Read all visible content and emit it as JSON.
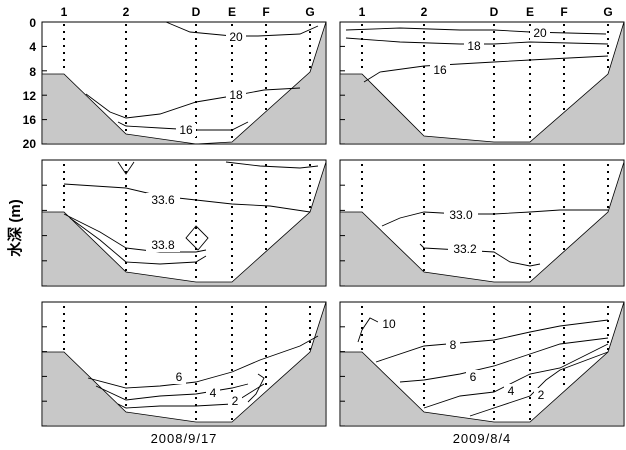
{
  "y_axis_label": "水深 (m)",
  "depth_ticks": [
    "0",
    "4",
    "8",
    "12",
    "16",
    "20"
  ],
  "stations": [
    "1",
    "2",
    "D",
    "E",
    "F",
    "G"
  ],
  "colors": {
    "bottom_fill": "#c8c8c8",
    "line": "#000000"
  },
  "chart_data": [
    {
      "type": "contour",
      "variable_row": 1,
      "date": "2008/9/17",
      "y_range_m": [
        0,
        20
      ],
      "y_inverted": true,
      "xlabel": "",
      "ylabel": "水深 (m)",
      "contour_levels": [
        "20",
        "18",
        "16"
      ]
    },
    {
      "type": "contour",
      "variable_row": 1,
      "date": "2009/8/4",
      "y_range_m": [
        0,
        20
      ],
      "y_inverted": true,
      "xlabel": "",
      "ylabel": "",
      "contour_levels": [
        "20",
        "18",
        "16"
      ]
    },
    {
      "type": "contour",
      "variable_row": 2,
      "date": "2008/9/17",
      "y_range_m": [
        0,
        20
      ],
      "y_inverted": true,
      "xlabel": "",
      "ylabel": "水深 (m)",
      "contour_levels": [
        "33.6",
        "33.8"
      ]
    },
    {
      "type": "contour",
      "variable_row": 2,
      "date": "2009/8/4",
      "y_range_m": [
        0,
        20
      ],
      "y_inverted": true,
      "xlabel": "",
      "ylabel": "",
      "contour_levels": [
        "33.0",
        "33.2"
      ]
    },
    {
      "type": "contour",
      "variable_row": 3,
      "date": "2008/9/17",
      "y_range_m": [
        0,
        20
      ],
      "y_inverted": true,
      "xlabel": "",
      "ylabel": "水深 (m)",
      "contour_levels": [
        "6",
        "4",
        "2"
      ]
    },
    {
      "type": "contour",
      "variable_row": 3,
      "date": "2009/8/4",
      "y_range_m": [
        0,
        20
      ],
      "y_inverted": true,
      "xlabel": "",
      "ylabel": "",
      "contour_levels": [
        "10",
        "8",
        "6",
        "4",
        "2"
      ]
    }
  ],
  "dates": [
    "2008/9/17",
    "2009/8/4"
  ]
}
